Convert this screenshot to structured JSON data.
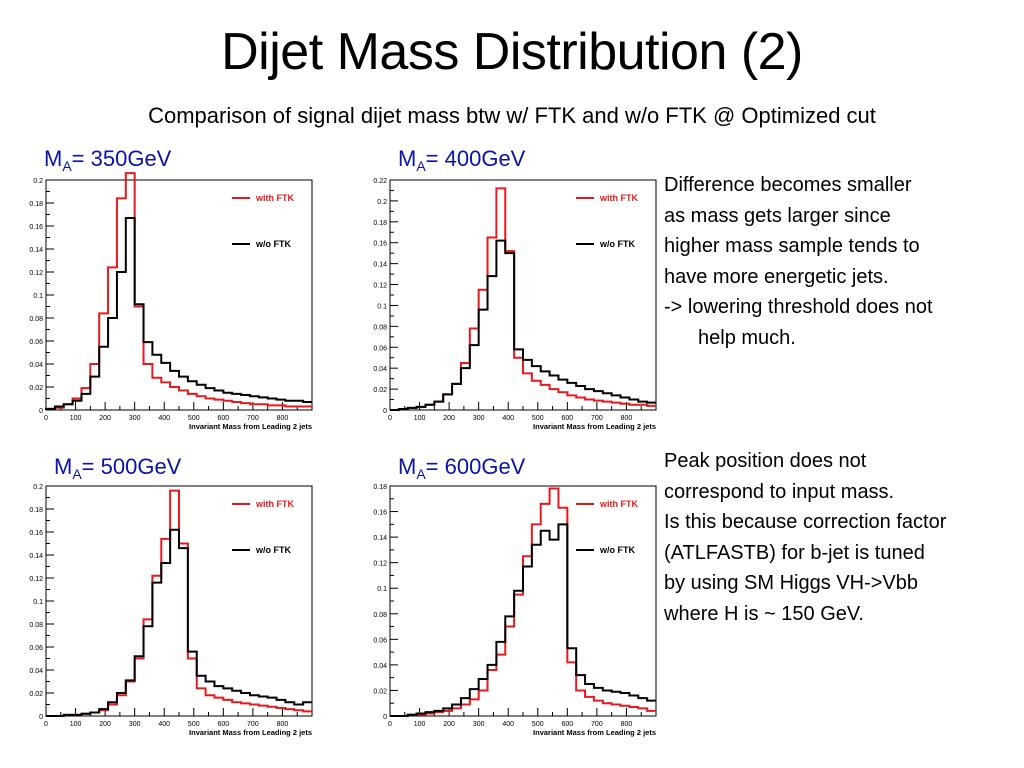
{
  "title": "Dijet Mass Distribution (2)",
  "subtitle": "Comparison of signal dijet mass btw w/ FTK and w/o FTK @ Optimized cut",
  "colors": {
    "with_ftk": "#e8191c",
    "without_ftk": "#000000",
    "plot_title": "#0b13a8"
  },
  "notes": {
    "block1": [
      "Difference becomes smaller",
      "as mass gets larger since",
      "higher mass sample tends to",
      "have more energetic jets.",
      "-> lowering threshold does not",
      "help much."
    ],
    "block2": [
      "Peak position does not",
      "correspond to input mass.",
      "Is this because correction factor",
      "(ATLFASTB) for b-jet is tuned",
      "by using SM Higgs VH->Vbb",
      "where H is ~ 150 GeV."
    ]
  },
  "plot_titles": [
    {
      "prefix": "M",
      "sub": "A",
      "suffix": "= 350GeV"
    },
    {
      "prefix": "M",
      "sub": "A",
      "suffix": "= 400GeV"
    },
    {
      "prefix": "M",
      "sub": "A",
      "suffix": "= 500GeV"
    },
    {
      "prefix": "M",
      "sub": "A",
      "suffix": "= 600GeV"
    }
  ],
  "chart_data": [
    {
      "type": "line",
      "title": "MA= 350GeV",
      "xlabel": "Invariant Mass from Leading 2 jets",
      "ylabel": "",
      "xlim": [
        0,
        900
      ],
      "ylim": [
        0,
        0.2
      ],
      "x_ticks": [
        "0",
        "100",
        "200",
        "300",
        "400",
        "500",
        "600",
        "700",
        "800"
      ],
      "y_ticks": [
        "0",
        "0.02",
        "0.04",
        "0.06",
        "0.08",
        "0.1",
        "0.12",
        "0.14",
        "0.16",
        "0.18",
        "0.2"
      ],
      "x_tick_values": [
        0,
        100,
        200,
        300,
        400,
        500,
        600,
        700,
        800
      ],
      "y_tick_values": [
        0,
        0.02,
        0.04,
        0.06,
        0.08,
        0.1,
        0.12,
        0.14,
        0.16,
        0.18,
        0.2
      ],
      "bin_width": 30,
      "legend": "top-right",
      "grid": false,
      "series": [
        {
          "name": "with FTK",
          "color": "#e8191c",
          "values": [
            0.001,
            0.002,
            0.005,
            0.01,
            0.019,
            0.04,
            0.084,
            0.124,
            0.184,
            0.206,
            0.09,
            0.04,
            0.028,
            0.024,
            0.02,
            0.017,
            0.014,
            0.012,
            0.01,
            0.009,
            0.008,
            0.007,
            0.006,
            0.005,
            0.005,
            0.004,
            0.004,
            0.003,
            0.003,
            0.003
          ]
        },
        {
          "name": "w/o FTK",
          "color": "#000000",
          "values": [
            0.001,
            0.003,
            0.005,
            0.008,
            0.014,
            0.029,
            0.055,
            0.08,
            0.12,
            0.167,
            0.092,
            0.059,
            0.048,
            0.041,
            0.034,
            0.029,
            0.025,
            0.022,
            0.019,
            0.017,
            0.015,
            0.014,
            0.013,
            0.012,
            0.011,
            0.01,
            0.009,
            0.008,
            0.008,
            0.007
          ]
        }
      ]
    },
    {
      "type": "line",
      "title": "MA= 400GeV",
      "xlabel": "Invariant Mass from Leading 2 jets",
      "ylabel": "",
      "xlim": [
        0,
        900
      ],
      "ylim": [
        0,
        0.22
      ],
      "x_ticks": [
        "0",
        "100",
        "200",
        "300",
        "400",
        "500",
        "600",
        "700",
        "800"
      ],
      "y_ticks": [
        "0",
        "0.02",
        "0.04",
        "0.06",
        "0.08",
        "0.1",
        "0.12",
        "0.14",
        "0.16",
        "0.18",
        "0.2",
        "0.22"
      ],
      "x_tick_values": [
        0,
        100,
        200,
        300,
        400,
        500,
        600,
        700,
        800
      ],
      "y_tick_values": [
        0,
        0.02,
        0.04,
        0.06,
        0.08,
        0.1,
        0.12,
        0.14,
        0.16,
        0.18,
        0.2,
        0.22
      ],
      "bin_width": 30,
      "legend": "top-right",
      "grid": false,
      "series": [
        {
          "name": "with FTK",
          "color": "#e8191c",
          "values": [
            0.0,
            0.001,
            0.002,
            0.003,
            0.005,
            0.008,
            0.015,
            0.025,
            0.045,
            0.078,
            0.115,
            0.165,
            0.212,
            0.152,
            0.05,
            0.035,
            0.028,
            0.024,
            0.02,
            0.017,
            0.014,
            0.012,
            0.01,
            0.009,
            0.008,
            0.007,
            0.006,
            0.005,
            0.005,
            0.004
          ]
        },
        {
          "name": "w/o FTK",
          "color": "#000000",
          "values": [
            0.0,
            0.001,
            0.002,
            0.003,
            0.005,
            0.008,
            0.015,
            0.025,
            0.04,
            0.062,
            0.096,
            0.128,
            0.162,
            0.15,
            0.058,
            0.048,
            0.042,
            0.037,
            0.033,
            0.029,
            0.026,
            0.023,
            0.02,
            0.018,
            0.016,
            0.014,
            0.012,
            0.01,
            0.008,
            0.007
          ]
        }
      ]
    },
    {
      "type": "line",
      "title": "MA= 500GeV",
      "xlabel": "Invariant Mass from Leading 2 jets",
      "ylabel": "",
      "xlim": [
        0,
        900
      ],
      "ylim": [
        0,
        0.2
      ],
      "x_ticks": [
        "0",
        "100",
        "200",
        "300",
        "400",
        "500",
        "600",
        "700",
        "800"
      ],
      "y_ticks": [
        "0",
        "0.02",
        "0.04",
        "0.06",
        "0.08",
        "0.1",
        "0.12",
        "0.14",
        "0.16",
        "0.18",
        "0.2"
      ],
      "x_tick_values": [
        0,
        100,
        200,
        300,
        400,
        500,
        600,
        700,
        800
      ],
      "y_tick_values": [
        0,
        0.02,
        0.04,
        0.06,
        0.08,
        0.1,
        0.12,
        0.14,
        0.16,
        0.18,
        0.2
      ],
      "bin_width": 30,
      "legend": "top-right",
      "grid": false,
      "series": [
        {
          "name": "with FTK",
          "color": "#e8191c",
          "values": [
            0.0,
            0.0,
            0.001,
            0.001,
            0.002,
            0.003,
            0.005,
            0.01,
            0.018,
            0.03,
            0.05,
            0.084,
            0.122,
            0.154,
            0.196,
            0.15,
            0.05,
            0.024,
            0.018,
            0.016,
            0.014,
            0.012,
            0.011,
            0.01,
            0.009,
            0.008,
            0.007,
            0.006,
            0.005,
            0.004
          ]
        },
        {
          "name": "w/o FTK",
          "color": "#000000",
          "values": [
            0.0,
            0.0,
            0.001,
            0.001,
            0.002,
            0.003,
            0.006,
            0.012,
            0.02,
            0.031,
            0.052,
            0.078,
            0.116,
            0.133,
            0.162,
            0.146,
            0.056,
            0.035,
            0.03,
            0.026,
            0.024,
            0.022,
            0.02,
            0.018,
            0.017,
            0.016,
            0.014,
            0.012,
            0.01,
            0.012
          ]
        }
      ]
    },
    {
      "type": "line",
      "title": "MA= 600GeV",
      "xlabel": "Invariant Mass from Leading 2 jets",
      "ylabel": "",
      "xlim": [
        0,
        900
      ],
      "ylim": [
        0,
        0.18
      ],
      "x_ticks": [
        "0",
        "100",
        "200",
        "300",
        "400",
        "500",
        "600",
        "700",
        "800"
      ],
      "y_ticks": [
        "0",
        "0.02",
        "0.04",
        "0.06",
        "0.08",
        "0.1",
        "0.12",
        "0.14",
        "0.16",
        "0.18"
      ],
      "x_tick_values": [
        0,
        100,
        200,
        300,
        400,
        500,
        600,
        700,
        800
      ],
      "y_tick_values": [
        0,
        0.02,
        0.04,
        0.06,
        0.08,
        0.1,
        0.12,
        0.14,
        0.16,
        0.18
      ],
      "bin_width": 30,
      "legend": "top-right",
      "grid": false,
      "series": [
        {
          "name": "with FTK",
          "color": "#e8191c",
          "values": [
            0.0,
            0.0,
            0.001,
            0.001,
            0.002,
            0.003,
            0.004,
            0.006,
            0.009,
            0.013,
            0.02,
            0.036,
            0.048,
            0.07,
            0.095,
            0.125,
            0.15,
            0.166,
            0.178,
            0.163,
            0.042,
            0.02,
            0.015,
            0.012,
            0.01,
            0.009,
            0.008,
            0.007,
            0.006,
            0.004
          ]
        },
        {
          "name": "w/o FTK",
          "color": "#000000",
          "values": [
            0.0,
            0.0,
            0.001,
            0.002,
            0.003,
            0.004,
            0.006,
            0.009,
            0.014,
            0.021,
            0.029,
            0.04,
            0.058,
            0.078,
            0.098,
            0.117,
            0.134,
            0.145,
            0.138,
            0.15,
            0.053,
            0.032,
            0.025,
            0.022,
            0.02,
            0.019,
            0.018,
            0.016,
            0.014,
            0.012
          ]
        }
      ]
    }
  ]
}
